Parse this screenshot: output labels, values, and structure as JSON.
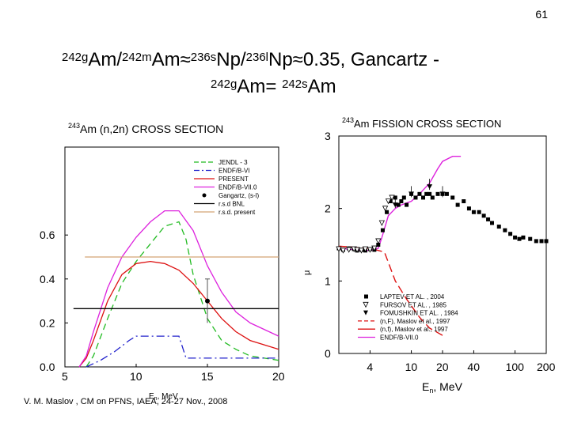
{
  "page_number": "61",
  "title": {
    "l1_p1": "242g",
    "l1_p2": "Am/",
    "l1_p3": "242m",
    "l1_p4": "Am≈",
    "l1_p5": "236s",
    "l1_p6": "Np/",
    "l1_p7": "236l",
    "l1_p8": "Np≈0.35, Gancartz -",
    "l2_p1": "242g",
    "l2_p2": "Am= ",
    "l2_p3": "242s",
    "l2_p4": "Am"
  },
  "footer": "V. M. Maslov ,  CM on PFNS, IAEA, 24-27 Nov., 2008",
  "colors": {
    "jendl": "#22bb22",
    "endf6": "#2222cc",
    "present": "#dd1111",
    "endf7": "#dd22dd",
    "bnl": "#000000",
    "rsd_present": "#d4a373"
  },
  "chart_data": [
    {
      "type": "line",
      "title_sup": "243",
      "title": "Am (n,2n)  CROSS  SECTION",
      "xlabel": "E_n, MeV",
      "ylabel": "",
      "xlim": [
        5,
        20
      ],
      "ylim": [
        0,
        1.0
      ],
      "xticks": [
        "5",
        "10",
        "15",
        "20"
      ],
      "yticks": [
        "0.0",
        "0.2",
        "0.4",
        "0.6"
      ],
      "series": [
        {
          "name": "JENDL - 3",
          "color": "#22bb22",
          "dash": "8,5",
          "x": [
            6.5,
            7.0,
            8.0,
            9.0,
            10.0,
            11.0,
            12.0,
            13.0,
            13.5,
            14.0,
            15.0,
            16.0,
            17.0,
            18.0,
            20.0
          ],
          "y": [
            0.0,
            0.05,
            0.22,
            0.38,
            0.48,
            0.56,
            0.64,
            0.66,
            0.58,
            0.42,
            0.22,
            0.12,
            0.08,
            0.05,
            0.03
          ]
        },
        {
          "name": "ENDF/B-VI",
          "color": "#2222cc",
          "dash": "10,4,2,4",
          "x": [
            6.5,
            7.5,
            8.5,
            9.5,
            10.0,
            11.0,
            12.0,
            13.0,
            13.5,
            20.0
          ],
          "y": [
            0.0,
            0.03,
            0.07,
            0.12,
            0.14,
            0.14,
            0.14,
            0.14,
            0.04,
            0.04
          ]
        },
        {
          "name": "PRESENT",
          "color": "#dd1111",
          "dash": "",
          "x": [
            6.0,
            6.5,
            7.0,
            8.0,
            9.0,
            10.0,
            11.0,
            12.0,
            13.0,
            14.0,
            15.0,
            16.0,
            17.0,
            18.0,
            20.0
          ],
          "y": [
            0.0,
            0.04,
            0.12,
            0.3,
            0.42,
            0.47,
            0.48,
            0.47,
            0.44,
            0.38,
            0.3,
            0.22,
            0.16,
            0.12,
            0.08
          ]
        },
        {
          "name": "ENDF/B-VII.0",
          "color": "#dd22dd",
          "dash": "",
          "x": [
            6.0,
            6.5,
            7.0,
            8.0,
            9.0,
            10.0,
            11.0,
            12.0,
            13.0,
            14.0,
            15.0,
            16.0,
            17.0,
            18.0,
            20.0
          ],
          "y": [
            0.0,
            0.05,
            0.16,
            0.36,
            0.5,
            0.59,
            0.66,
            0.71,
            0.71,
            0.62,
            0.46,
            0.34,
            0.25,
            0.2,
            0.14
          ]
        },
        {
          "name": "r.s.d BNL",
          "color": "#000000",
          "dash": "",
          "x": [
            5.6,
            20.0
          ],
          "y": [
            0.265,
            0.265
          ]
        },
        {
          "name": "r.s.d. present",
          "color": "#d4a373",
          "dash": "",
          "x": [
            6.4,
            20.0
          ],
          "y": [
            0.5,
            0.5
          ]
        }
      ],
      "points": [
        {
          "name": "Gangartz, (s-l)",
          "x": 15.0,
          "y": 0.3,
          "yerr_low": 0.2,
          "yerr_high": 0.4
        }
      ],
      "legend": [
        "JENDL - 3",
        "ENDF/B-VI",
        "PRESENT",
        "ENDF/B-VII.0",
        "Gangartz, (s-l)",
        "r.s.d BNL",
        "r.s.d. present"
      ],
      "legend_position": "top-right"
    },
    {
      "type": "line",
      "title_sup": "243",
      "title": "Am  FISSION  CROSS  SECTION",
      "xlabel": "E_n, MeV",
      "ylabel": "μ",
      "xscale": "log",
      "xlim": [
        2,
        200
      ],
      "ylim": [
        0,
        3
      ],
      "xticks": [
        "4",
        "10",
        "20",
        "40",
        "100",
        "200"
      ],
      "yticks": [
        "0",
        "1",
        "2",
        "3"
      ],
      "series": [
        {
          "name": "(n,F), Maslov et al., 1997",
          "color": "#dd1111",
          "dash": "10,5",
          "x": [
            2.0,
            4.0,
            5.5,
            7.0,
            9.0,
            12.0,
            15.0,
            20.0
          ],
          "y": [
            1.48,
            1.45,
            1.4,
            1.0,
            0.75,
            0.5,
            0.35,
            0.25
          ]
        },
        {
          "name": "ENDF/B-VII.0",
          "color": "#dd22dd",
          "dash": "",
          "x": [
            2.0,
            3.0,
            4.0,
            4.8,
            5.2,
            6.0,
            7.0,
            8.0,
            10.0,
            12.0,
            15.0,
            18.0,
            20.0,
            25.0,
            30.0
          ],
          "y": [
            1.45,
            1.43,
            1.42,
            1.45,
            1.6,
            1.9,
            2.0,
            2.05,
            2.1,
            2.2,
            2.35,
            2.55,
            2.65,
            2.72,
            2.72
          ]
        }
      ],
      "scatter": [
        {
          "name": "LAPTEV  ET  AL. ,  2004",
          "marker": "square",
          "x": [
            2.0,
            2.2,
            2.5,
            2.8,
            3.0,
            3.3,
            3.6,
            4.0,
            4.4,
            4.8,
            5.3,
            5.8,
            6.3,
            7.0,
            7.5,
            8.0,
            8.5,
            9.0,
            10.0,
            11.0,
            12.0,
            13.0,
            14.0,
            15.0,
            16.0,
            18.0,
            20.0,
            22.0,
            25.0,
            28.0,
            32.0,
            36.0,
            40.0,
            45.0,
            50.0,
            55.0,
            60.0,
            70.0,
            80.0,
            90.0,
            100.0,
            110.0,
            120.0,
            140.0,
            160.0,
            180.0,
            200.0
          ],
          "y": [
            1.45,
            1.43,
            1.45,
            1.44,
            1.42,
            1.43,
            1.42,
            1.44,
            1.43,
            1.5,
            1.7,
            1.95,
            2.1,
            2.15,
            2.05,
            2.1,
            2.15,
            2.05,
            2.2,
            2.15,
            2.2,
            2.15,
            2.2,
            2.2,
            2.15,
            2.2,
            2.2,
            2.2,
            2.15,
            2.05,
            2.1,
            2.0,
            1.95,
            1.95,
            1.9,
            1.85,
            1.8,
            1.75,
            1.7,
            1.65,
            1.6,
            1.58,
            1.6,
            1.58,
            1.55,
            1.55,
            1.55
          ]
        },
        {
          "name": "FURSOV  ET  AL. ,  1985",
          "marker": "triangle-down-open",
          "x": [
            2.0,
            2.2,
            2.5,
            2.8,
            3.0,
            3.3,
            3.6,
            4.0,
            4.4,
            4.8,
            5.2,
            5.6,
            6.0,
            6.5
          ],
          "y": [
            1.44,
            1.42,
            1.43,
            1.44,
            1.43,
            1.42,
            1.44,
            1.43,
            1.45,
            1.55,
            1.8,
            2.0,
            2.1,
            2.15
          ]
        },
        {
          "name": "FOMUSHKIN  ET  AL. ,  1984",
          "marker": "triangle-down",
          "x": [
            7.0,
            10.0,
            15.0,
            20.0
          ],
          "y": [
            2.05,
            2.2,
            2.3,
            2.2
          ]
        }
      ],
      "legend": [
        "LAPTEV  ET  AL. ,  2004",
        "FURSOV  ET  AL. ,  1985",
        "FOMUSHKIN  ET  AL. ,  1984",
        "(n,F), Maslov et al., 1997",
        "(n,f), Maslov et al., 1997",
        "ENDF/B-VII.0"
      ],
      "legend_position": "bottom-right"
    }
  ]
}
